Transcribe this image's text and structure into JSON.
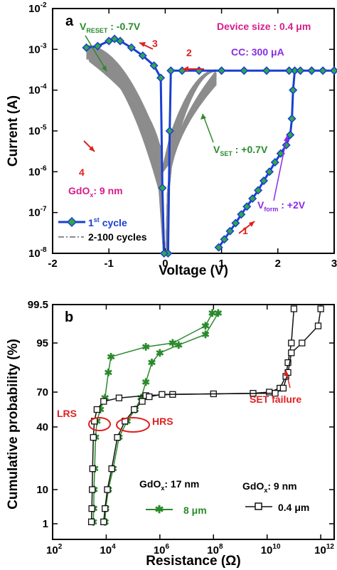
{
  "figure_title": "",
  "chart_data": [
    {
      "type": "line",
      "panel_label": "a",
      "xlabel": "Voltage (V)",
      "ylabel": "Current (A)",
      "xlim": [
        -2,
        3
      ],
      "ylim_log10": [
        -8,
        -2
      ],
      "yscale": "log",
      "grid": false,
      "legend_position": "bottom-left",
      "x_tick_labels": [
        "-2",
        "-1",
        "0",
        "1",
        "2",
        "3"
      ],
      "x_tick_values": [
        -2,
        -1,
        0,
        1,
        2,
        3
      ],
      "y_tick_exponents": [
        -8,
        -7,
        -6,
        -5,
        -4,
        -3,
        -2
      ],
      "y_tick_base": "10",
      "series": [
        {
          "name": "1st cycle",
          "name_base": "1",
          "name_sup": "st",
          "name_rest": " cycle",
          "color": "#1a3fd1",
          "marker_color": "#2fa84a",
          "points": [
            [
              0.95,
              1.4e-08
            ],
            [
              1.05,
              2.2e-08
            ],
            [
              1.15,
              3.5e-08
            ],
            [
              1.25,
              5.5e-08
            ],
            [
              1.35,
              9e-08
            ],
            [
              1.45,
              1.4e-07
            ],
            [
              1.55,
              2.2e-07
            ],
            [
              1.65,
              3.5e-07
            ],
            [
              1.75,
              6e-07
            ],
            [
              1.85,
              1e-06
            ],
            [
              1.95,
              1.7e-06
            ],
            [
              2.05,
              2.8e-06
            ],
            [
              2.15,
              4.5e-06
            ],
            [
              2.22,
              8e-06
            ],
            [
              2.25,
              2e-05
            ],
            [
              2.27,
              0.0001
            ],
            [
              2.3,
              0.0003
            ],
            [
              2.4,
              0.0003
            ],
            [
              2.6,
              0.0003
            ],
            [
              2.8,
              0.0003
            ],
            [
              3.0,
              0.0003
            ]
          ],
          "reset_points": [
            [
              3.0,
              0.0003
            ],
            [
              2.6,
              0.0003
            ],
            [
              2.2,
              0.0003
            ],
            [
              1.8,
              0.0003
            ],
            [
              1.4,
              0.0003
            ],
            [
              1.0,
              0.0003
            ],
            [
              0.6,
              0.0003
            ],
            [
              0.3,
              0.0003
            ],
            [
              0.1,
              0.0003
            ],
            [
              0.08,
              1e-05
            ],
            [
              0.05,
              1e-08
            ],
            [
              -0.02,
              1e-08
            ],
            [
              -0.05,
              4e-07
            ],
            [
              -0.08,
              0.0002
            ],
            [
              -0.2,
              0.0004
            ],
            [
              -0.4,
              0.0007
            ],
            [
              -0.6,
              0.0011
            ],
            [
              -0.8,
              0.0016
            ],
            [
              -0.9,
              0.0018
            ],
            [
              -1.0,
              0.0016
            ],
            [
              -1.2,
              0.0012
            ],
            [
              -1.4,
              0.0011
            ]
          ]
        },
        {
          "name": "2-100 cycles",
          "color": "#8c8c8c"
        }
      ],
      "annotations": {
        "v_reset_main": "V",
        "v_reset_sub": "RESET",
        "v_reset_val": " : -0.7V",
        "v_set_main": "V",
        "v_set_sub": "SET",
        "v_set_val": " : +0.7V",
        "v_form_main": "V",
        "v_form_sub": "form",
        "v_form_val": " : +2V",
        "device_size": "Device size : 0.4 μm",
        "cc": "CC: 300 μA",
        "gdox_main": "GdO",
        "gdox_sub": "x",
        "gdox_val": ": 9 nm",
        "step1": "1",
        "step2": "2",
        "step3": "3",
        "step4": "4"
      }
    },
    {
      "type": "line",
      "panel_label": "b",
      "xlabel": "Resistance (Ω)",
      "ylabel": "Cumulative probability (%)",
      "xscale": "log",
      "xlim_log10": [
        2,
        12.5
      ],
      "x_tick_exponents": [
        2,
        4,
        6,
        8,
        10,
        12
      ],
      "x_tick_base": "10",
      "y_tick_labels": [
        "1",
        "10",
        "40",
        "70",
        "95",
        "99.5"
      ],
      "y_tick_values": [
        1,
        10,
        40,
        70,
        95,
        99.5
      ],
      "grid": false,
      "series": [
        {
          "name": "8 μm",
          "group_main": "GdO",
          "group_sub": "x",
          "group_val": ": 17 nm",
          "color": "#2a8a2a",
          "marker": "star",
          "lrs": [
            [
              3300.0,
              1.5
            ],
            [
              3400.0,
              5
            ],
            [
              3500.0,
              10
            ],
            [
              3700.0,
              20
            ],
            [
              4000.0,
              35
            ],
            [
              4500.0,
              45
            ],
            [
              6000.0,
              55
            ],
            [
              9000.0,
              65
            ],
            [
              12000.0,
              80
            ],
            [
              15000.0,
              88
            ],
            [
              300000.0,
              93
            ],
            [
              3000000.0,
              95
            ],
            [
              50000000.0,
              97
            ],
            [
              90000000.0,
              98.5
            ]
          ],
          "hrs": [
            [
              9000.0,
              1.5
            ],
            [
              9500.0,
              5
            ],
            [
              12000.0,
              10
            ],
            [
              18000.0,
              20
            ],
            [
              30000.0,
              35
            ],
            [
              60000.0,
              45
            ],
            [
              120000.0,
              55
            ],
            [
              200000.0,
              65
            ],
            [
              300000.0,
              75
            ],
            [
              500000.0,
              85
            ],
            [
              1000000.0,
              90
            ],
            [
              5000000.0,
              94
            ],
            [
              50000000.0,
              96
            ],
            [
              150000000.0,
              98.5
            ]
          ]
        },
        {
          "name": "0.4 μm",
          "group_main": "GdO",
          "group_sub": "x",
          "group_val": ": 9 nm",
          "color": "#111111",
          "marker": "open-square",
          "lrs": [
            [
              2800.0,
              1.5
            ],
            [
              2900.0,
              5
            ],
            [
              3000.0,
              10
            ],
            [
              3100.0,
              20
            ],
            [
              3300.0,
              35
            ],
            [
              3600.0,
              45
            ],
            [
              4500.0,
              55
            ],
            [
              8000.0,
              62
            ],
            [
              30000.0,
              65
            ],
            [
              300000.0,
              67
            ],
            [
              3000000.0,
              68
            ],
            [
              100000000.0,
              68.5
            ],
            [
              3000000000.0,
              69
            ],
            [
              12000000000.0,
              70
            ],
            [
              30000000000.0,
              72
            ],
            [
              50000000000.0,
              78
            ],
            [
              60000000000.0,
              85
            ],
            [
              80000000000.0,
              95
            ],
            [
              100000000000.0,
              99
            ]
          ],
          "hrs": [
            [
              8000.0,
              1.5
            ],
            [
              9000.0,
              5
            ],
            [
              11000.0,
              10
            ],
            [
              16000.0,
              20
            ],
            [
              26000.0,
              35
            ],
            [
              50000.0,
              45
            ],
            [
              110000.0,
              55
            ],
            [
              220000.0,
              62
            ],
            [
              400000.0,
              66
            ],
            [
              1200000.0,
              68
            ],
            [
              20000000000.0,
              69
            ],
            [
              40000000000.0,
              72
            ],
            [
              60000000000.0,
              80
            ],
            [
              80000000000.0,
              90
            ],
            [
              200000000000.0,
              95
            ],
            [
              800000000000.0,
              97
            ],
            [
              1000000000000.0,
              99
            ]
          ]
        }
      ],
      "annotations": {
        "lrs": "LRS",
        "hrs": "HRS",
        "set_failure": "SET failure"
      }
    }
  ]
}
